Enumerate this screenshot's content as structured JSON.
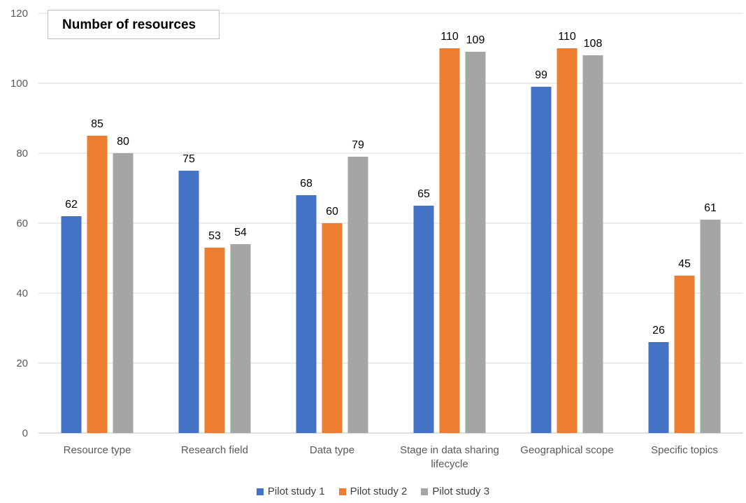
{
  "chart_data": {
    "type": "bar",
    "title": "Number of resources",
    "categories": [
      [
        "Resource type"
      ],
      [
        "Research field"
      ],
      [
        "Data type"
      ],
      [
        "Stage in data sharing",
        "lifecycle"
      ],
      [
        "Geographical scope"
      ],
      [
        "Specific topics"
      ]
    ],
    "series": [
      {
        "name": "Pilot study 1",
        "color": "#4472c4",
        "values": [
          62,
          75,
          68,
          65,
          99,
          26
        ]
      },
      {
        "name": "Pilot study 2",
        "color": "#ed7d31",
        "values": [
          85,
          53,
          60,
          110,
          110,
          45
        ]
      },
      {
        "name": "Pilot study 3",
        "color": "#a5a5a5",
        "values": [
          80,
          54,
          79,
          109,
          108,
          61
        ]
      }
    ],
    "ylim": [
      0,
      120
    ],
    "yticks": [
      0,
      20,
      40,
      60,
      80,
      100,
      120
    ],
    "grid": true,
    "legend_position": "bottom"
  }
}
